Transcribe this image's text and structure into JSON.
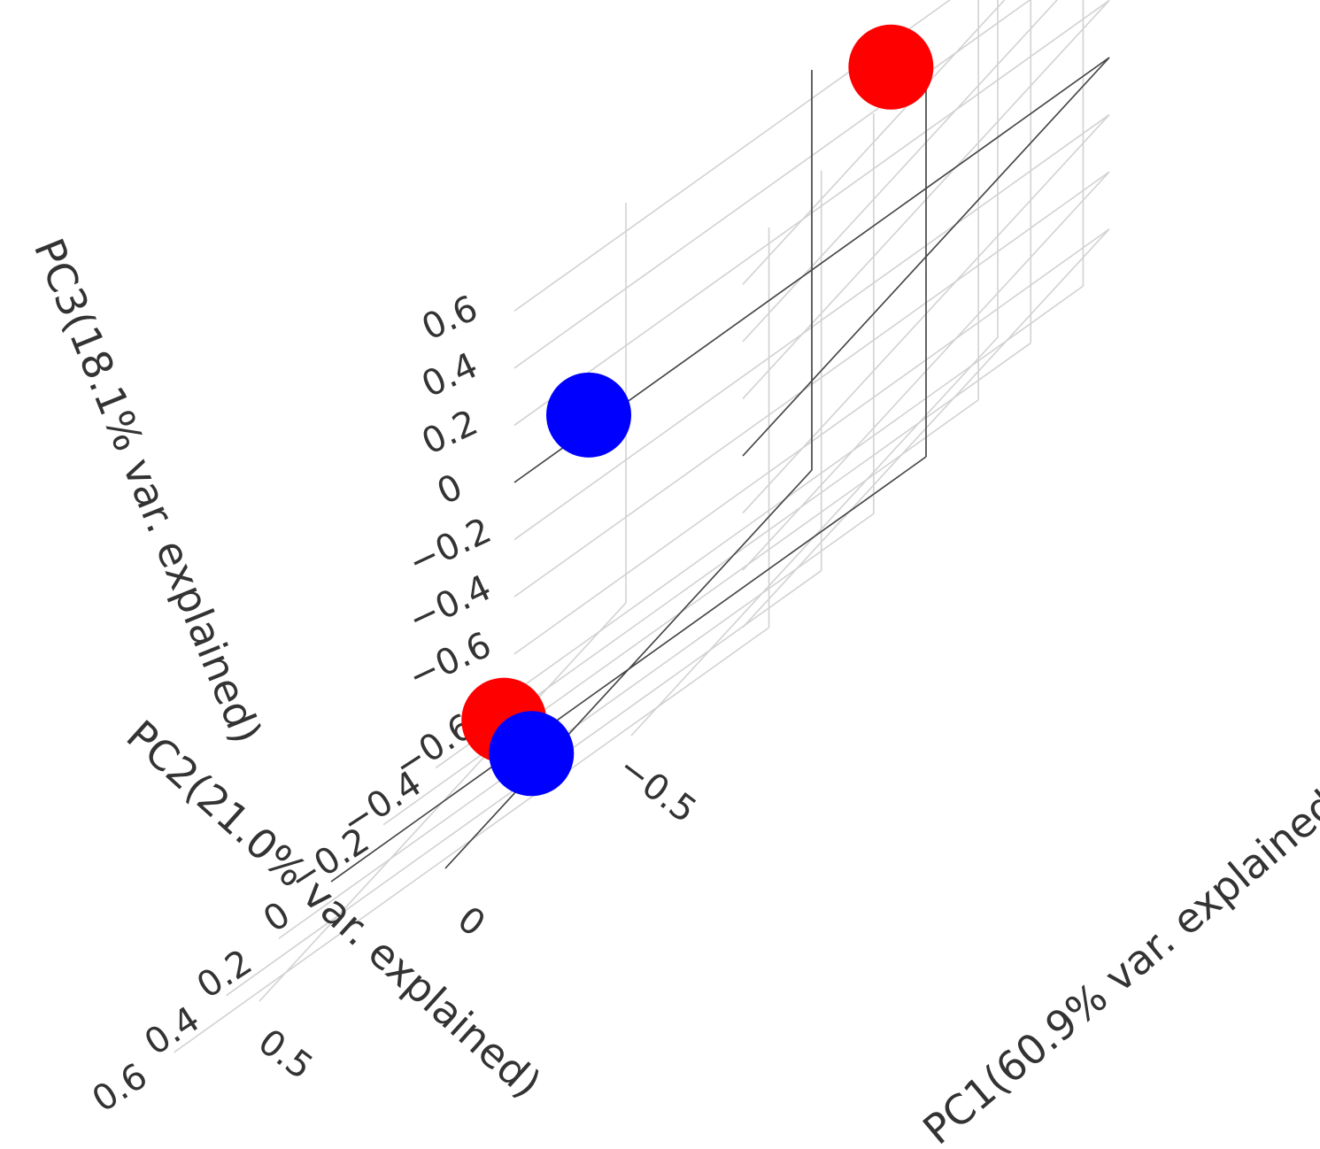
{
  "chart_data": {
    "type": "scatter3d",
    "axes": {
      "x": {
        "title": "PC1(60.9% var. explained)",
        "range": [
          -0.8,
          0.8
        ],
        "ticks": [
          -0.5,
          0,
          0.5
        ],
        "tick_labels": [
          "−0.5",
          "0",
          "0.5"
        ]
      },
      "y": {
        "title": "PC2(21.0% var. explained)",
        "range": [
          -0.7,
          0.7
        ],
        "ticks": [
          -0.6,
          -0.4,
          -0.2,
          0,
          0.2,
          0.4,
          0.6
        ],
        "tick_labels": [
          "−0.6",
          "−0.4",
          "−0.2",
          "0",
          "0.2",
          "0.4",
          "0.6"
        ]
      },
      "z": {
        "title": "PC3(18.1% var. explained)",
        "range": [
          -0.7,
          0.7
        ],
        "ticks": [
          -0.6,
          -0.4,
          -0.2,
          0,
          0.2,
          0.4,
          0.6
        ],
        "tick_labels": [
          "−0.6",
          "−0.4",
          "−0.2",
          "0",
          "0.2",
          "0.4",
          "0.6"
        ]
      }
    },
    "series": [
      {
        "color": "#ff0000",
        "points": [
          {
            "x": -0.6,
            "y": -0.15,
            "z": 0.7
          },
          {
            "x": 0.3,
            "y": 0.05,
            "z": -0.55
          }
        ]
      },
      {
        "color": "#0000ff",
        "points": [
          {
            "x": 0.6,
            "y": -0.7,
            "z": 0.05
          },
          {
            "x": 0.05,
            "y": 0.3,
            "z": -0.65
          }
        ]
      }
    ],
    "grid": true,
    "legend": "none"
  }
}
